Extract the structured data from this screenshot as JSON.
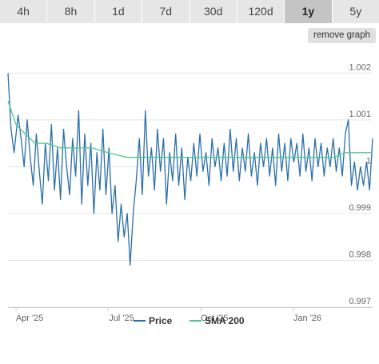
{
  "ranges": {
    "tabs": [
      "4h",
      "8h",
      "1d",
      "7d",
      "30d",
      "120d",
      "1y",
      "5y"
    ],
    "selected": "1y"
  },
  "remove_graph_label": "remove graph",
  "colors": {
    "price": "#2b6fa8",
    "sma": "#4cc98a",
    "grid": "#e6e6e6"
  },
  "chart_data": {
    "type": "line",
    "x_axis": {
      "type": "date",
      "range": [
        "2025-03-24",
        "2026-03-20"
      ],
      "ticks": [
        {
          "date": "2025-04-01",
          "label": "Apr '25"
        },
        {
          "date": "2025-07-01",
          "label": "Jul '25"
        },
        {
          "date": "2025-10-01",
          "label": "Oct '25"
        },
        {
          "date": "2026-01-01",
          "label": "Jan '26"
        }
      ]
    },
    "y_axis": {
      "min": 0.997,
      "max": 1.0025,
      "ticks": [
        {
          "value": 0.997,
          "label": "0.997"
        },
        {
          "value": 0.998,
          "label": "0.998"
        },
        {
          "value": 0.999,
          "label": "0.999"
        },
        {
          "value": 1.0,
          "label": "1"
        },
        {
          "value": 1.001,
          "label": "1.001"
        },
        {
          "value": 1.002,
          "label": "1.002"
        }
      ]
    },
    "grid": true,
    "legend_position": "bottom",
    "series": [
      {
        "name": "Price",
        "color": "#2b6fa8",
        "points": [
          [
            "2025-03-24",
            1.002
          ],
          [
            "2025-03-27",
            1.0008
          ],
          [
            "2025-03-30",
            1.0003
          ],
          [
            "2025-04-03",
            1.0011
          ],
          [
            "2025-04-06",
            1.0006
          ],
          [
            "2025-04-09",
            1.0
          ],
          [
            "2025-04-12",
            1.001
          ],
          [
            "2025-04-15",
            1.0002
          ],
          [
            "2025-04-18",
            0.9996
          ],
          [
            "2025-04-21",
            1.0007
          ],
          [
            "2025-04-24",
            0.9999
          ],
          [
            "2025-04-27",
            0.9992
          ],
          [
            "2025-04-30",
            1.0005
          ],
          [
            "2025-05-03",
            0.9997
          ],
          [
            "2025-05-06",
            1.0009
          ],
          [
            "2025-05-09",
            0.9995
          ],
          [
            "2025-05-12",
            1.0004
          ],
          [
            "2025-05-15",
            0.9993
          ],
          [
            "2025-05-18",
            1.0008
          ],
          [
            "2025-05-21",
            1.0
          ],
          [
            "2025-05-24",
            0.9994
          ],
          [
            "2025-05-27",
            1.0006
          ],
          [
            "2025-05-30",
            0.9998
          ],
          [
            "2025-06-02",
            1.0012
          ],
          [
            "2025-06-05",
            0.9992
          ],
          [
            "2025-06-08",
            1.0007
          ],
          [
            "2025-06-11",
            0.9996
          ],
          [
            "2025-06-14",
            1.0005
          ],
          [
            "2025-06-17",
            0.999
          ],
          [
            "2025-06-20",
            1.0003
          ],
          [
            "2025-06-23",
            0.9995
          ],
          [
            "2025-06-26",
            1.0008
          ],
          [
            "2025-06-29",
            0.9994
          ],
          [
            "2025-07-02",
            1.0004
          ],
          [
            "2025-07-05",
            0.999
          ],
          [
            "2025-07-08",
            0.9996
          ],
          [
            "2025-07-11",
            0.9984
          ],
          [
            "2025-07-14",
            0.9992
          ],
          [
            "2025-07-17",
            0.9985
          ],
          [
            "2025-07-20",
            0.999
          ],
          [
            "2025-07-23",
            0.9979
          ],
          [
            "2025-07-26",
            0.999
          ],
          [
            "2025-07-29",
            0.9997
          ],
          [
            "2025-08-01",
            1.0006
          ],
          [
            "2025-08-04",
            0.9994
          ],
          [
            "2025-08-07",
            1.0012
          ],
          [
            "2025-08-10",
            0.9998
          ],
          [
            "2025-08-13",
            1.0004
          ],
          [
            "2025-08-16",
            0.9995
          ],
          [
            "2025-08-19",
            1.0008
          ],
          [
            "2025-08-22",
            0.9999
          ],
          [
            "2025-08-25",
            1.0006
          ],
          [
            "2025-08-28",
            0.9992
          ],
          [
            "2025-08-31",
            1.0003
          ],
          [
            "2025-09-03",
            0.9997
          ],
          [
            "2025-09-06",
            1.0007
          ],
          [
            "2025-09-09",
            0.9996
          ],
          [
            "2025-09-12",
            1.0004
          ],
          [
            "2025-09-15",
            0.9993
          ],
          [
            "2025-09-18",
            1.0002
          ],
          [
            "2025-09-21",
            0.9997
          ],
          [
            "2025-09-24",
            1.0005
          ],
          [
            "2025-09-27",
            0.9998
          ],
          [
            "2025-09-30",
            1.0007
          ],
          [
            "2025-10-03",
            0.9999
          ],
          [
            "2025-10-06",
            1.0003
          ],
          [
            "2025-10-09",
            0.9996
          ],
          [
            "2025-10-12",
            1.0006
          ],
          [
            "2025-10-15",
            1.0
          ],
          [
            "2025-10-18",
            1.0004
          ],
          [
            "2025-10-21",
            0.9997
          ],
          [
            "2025-10-24",
            1.0005
          ],
          [
            "2025-10-27",
            0.9998
          ],
          [
            "2025-10-30",
            1.0008
          ],
          [
            "2025-11-02",
            0.9999
          ],
          [
            "2025-11-05",
            1.0006
          ],
          [
            "2025-11-08",
            0.9997
          ],
          [
            "2025-11-11",
            1.0004
          ],
          [
            "2025-11-14",
            0.9999
          ],
          [
            "2025-11-17",
            1.0007
          ],
          [
            "2025-11-20",
            0.9998
          ],
          [
            "2025-11-23",
            1.0003
          ],
          [
            "2025-11-26",
            0.9996
          ],
          [
            "2025-11-29",
            1.0005
          ],
          [
            "2025-12-02",
            1.0
          ],
          [
            "2025-12-05",
            1.0006
          ],
          [
            "2025-12-08",
            0.9998
          ],
          [
            "2025-12-11",
            1.0004
          ],
          [
            "2025-12-14",
            0.9996
          ],
          [
            "2025-12-17",
            1.0007
          ],
          [
            "2025-12-20",
            0.9999
          ],
          [
            "2025-12-23",
            1.0005
          ],
          [
            "2025-12-26",
            0.9997
          ],
          [
            "2025-12-29",
            1.0006
          ],
          [
            "2026-01-01",
            1.0001
          ],
          [
            "2026-01-04",
            1.0005
          ],
          [
            "2026-01-07",
            0.9998
          ],
          [
            "2026-01-10",
            1.0007
          ],
          [
            "2026-01-13",
            0.9999
          ],
          [
            "2026-01-16",
            1.0004
          ],
          [
            "2026-01-19",
            0.9997
          ],
          [
            "2026-01-22",
            1.0006
          ],
          [
            "2026-01-25",
            1.0
          ],
          [
            "2026-01-28",
            1.0005
          ],
          [
            "2026-01-31",
            0.9998
          ],
          [
            "2026-02-03",
            1.0004
          ],
          [
            "2026-02-06",
            1.0
          ],
          [
            "2026-02-09",
            1.0006
          ],
          [
            "2026-02-12",
            0.9999
          ],
          [
            "2026-02-15",
            1.0004
          ],
          [
            "2026-02-18",
            0.9998
          ],
          [
            "2026-02-21",
            1.0007
          ],
          [
            "2026-02-24",
            1.001
          ],
          [
            "2026-02-27",
            0.9996
          ],
          [
            "2026-03-02",
            1.0001
          ],
          [
            "2026-03-05",
            0.9995
          ],
          [
            "2026-03-08",
            1.0
          ],
          [
            "2026-03-11",
            0.9996
          ],
          [
            "2026-03-14",
            1.0001
          ],
          [
            "2026-03-17",
            0.9995
          ],
          [
            "2026-03-20",
            1.0006
          ]
        ]
      },
      {
        "name": "SMA 200",
        "color": "#4cc98a",
        "points": [
          [
            "2025-03-24",
            1.0014
          ],
          [
            "2025-04-01",
            1.0009
          ],
          [
            "2025-04-10",
            1.0007
          ],
          [
            "2025-04-20",
            1.0005
          ],
          [
            "2025-05-01",
            1.0005
          ],
          [
            "2025-05-15",
            1.0004
          ],
          [
            "2025-06-01",
            1.0004
          ],
          [
            "2025-06-15",
            1.0004
          ],
          [
            "2025-07-01",
            1.0003
          ],
          [
            "2025-07-20",
            1.0002
          ],
          [
            "2025-08-05",
            1.0002
          ],
          [
            "2025-08-25",
            1.0002
          ],
          [
            "2025-09-15",
            1.0002
          ],
          [
            "2025-10-01",
            1.0002
          ],
          [
            "2025-10-20",
            1.0002
          ],
          [
            "2025-11-10",
            1.0002
          ],
          [
            "2025-12-01",
            1.0002
          ],
          [
            "2025-12-20",
            1.0002
          ],
          [
            "2026-01-10",
            1.0002
          ],
          [
            "2026-01-25",
            1.0002
          ],
          [
            "2026-02-10",
            1.0002
          ],
          [
            "2026-02-20",
            1.0003
          ],
          [
            "2026-03-05",
            1.0003
          ],
          [
            "2026-03-20",
            1.0003
          ]
        ]
      }
    ]
  }
}
